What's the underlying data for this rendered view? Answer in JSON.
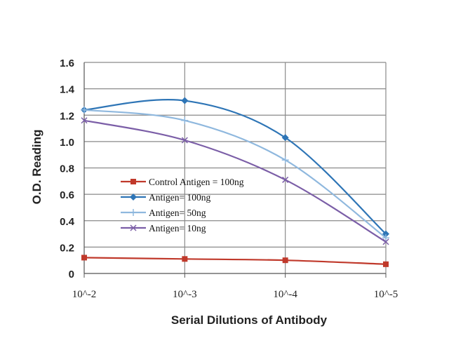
{
  "chart_data": {
    "type": "line",
    "xlabel": "Serial Dilutions of Antibody",
    "ylabel": "O.D. Reading",
    "categories": [
      "10^-2",
      "10^-3",
      "10^-4",
      "10^-5"
    ],
    "ylim": [
      0,
      1.6
    ],
    "yticks": [
      "0",
      "0.2",
      "0.4",
      "0.6",
      "0.8",
      "1.0",
      "1.2",
      "1.4",
      "1.6"
    ],
    "grid": true,
    "legend_position": "center-left",
    "series": [
      {
        "name": "Control Antigen = 100ng",
        "values": [
          0.12,
          0.11,
          0.1,
          0.07
        ],
        "color": "#c0392b",
        "marker": "square"
      },
      {
        "name": "Antigen= 100ng",
        "values": [
          1.24,
          1.31,
          1.03,
          0.3
        ],
        "color": "#2e75b6",
        "marker": "diamond"
      },
      {
        "name": "Antigen= 50ng",
        "values": [
          1.24,
          1.16,
          0.86,
          0.27
        ],
        "color": "#8fb8de",
        "marker": "plus"
      },
      {
        "name": "Antigen= 10ng",
        "values": [
          1.16,
          1.01,
          0.71,
          0.24
        ],
        "color": "#7b5ea7",
        "marker": "x"
      }
    ]
  }
}
